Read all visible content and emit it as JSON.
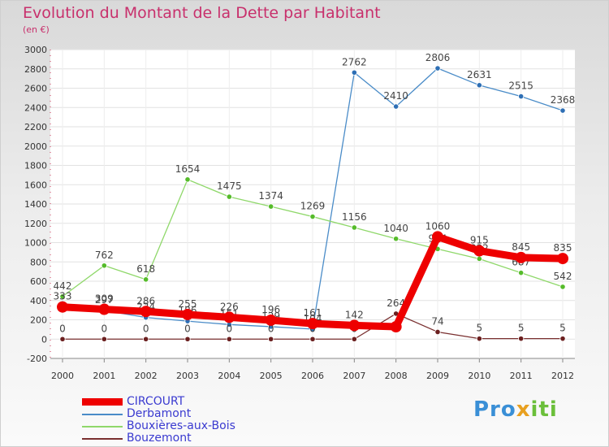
{
  "header": {
    "title": "Evolution du Montant de la Dette par Habitant",
    "subtitle": "(en €)"
  },
  "logo": {
    "text": "Proxiti"
  },
  "chart_data": {
    "type": "line",
    "title": "Evolution du Montant de la Dette par Habitant",
    "subtitle": "(en €)",
    "x": [
      "2000",
      "2001",
      "2002",
      "2003",
      "2004",
      "2005",
      "2006",
      "2007",
      "2008",
      "2009",
      "2010",
      "2011",
      "2012"
    ],
    "ylim": [
      -200,
      3000
    ],
    "yticks": [
      -200,
      0,
      200,
      400,
      600,
      800,
      1000,
      1200,
      1400,
      1600,
      1800,
      2000,
      2200,
      2400,
      2600,
      2800,
      3000
    ],
    "grid": true,
    "legend_position": "bottom-left",
    "series": [
      {
        "name": "Derbamont",
        "color": "#4a8cc8",
        "marker": "#2e6fb5",
        "values": [
          370,
          297,
          224,
          186,
          151,
          129,
          104,
          2762,
          2410,
          2806,
          2631,
          2515,
          2368
        ],
        "labels": [
          "",
          "297",
          "224",
          "186",
          "151",
          "129",
          "104",
          "2762",
          "2410",
          "2806",
          "2631",
          "2515",
          "2368"
        ]
      },
      {
        "name": "Bouxières-aux-Bois",
        "color": "#8fd86a",
        "marker": "#55bb2a",
        "values": [
          442,
          762,
          618,
          1654,
          1475,
          1374,
          1269,
          1156,
          1040,
          934,
          832,
          687,
          542
        ],
        "labels": [
          "442",
          "762",
          "618",
          "1654",
          "1475",
          "1374",
          "1269",
          "1156",
          "1040",
          "934",
          "832",
          "687",
          "542"
        ]
      },
      {
        "name": "Bouzemont",
        "color": "#7a3030",
        "marker": "#6b1f1f",
        "values": [
          0,
          0,
          0,
          0,
          0,
          0,
          0,
          0,
          264,
          74,
          5,
          5,
          5
        ],
        "labels": [
          "0",
          "0",
          "0",
          "0",
          "0",
          "0",
          "0",
          "0",
          "264",
          "74",
          "5",
          "5",
          "5"
        ]
      },
      {
        "name": "CIRCOURT",
        "color": "#ee0000",
        "marker": "#ee0000",
        "values": [
          333,
          309,
          286,
          255,
          226,
          196,
          161,
          142,
          128,
          1060,
          915,
          845,
          835
        ],
        "labels": [
          "333",
          "309",
          "286",
          "255",
          "226",
          "196",
          "161",
          "142",
          "",
          "1060",
          "915",
          "845",
          "835"
        ]
      }
    ]
  }
}
